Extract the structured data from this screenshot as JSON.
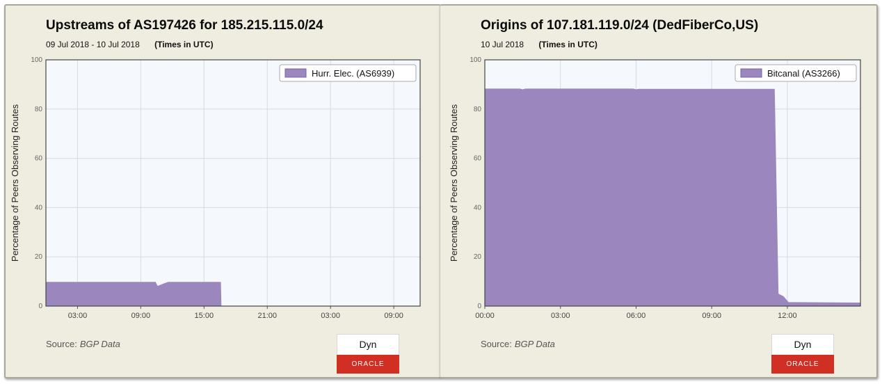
{
  "charts": [
    {
      "title": "Upstreams of AS197426 for 185.215.115.0/24",
      "date_range": "09 Jul 2018 - 10 Jul 2018",
      "time_note": "(Times in UTC)",
      "source_label": "Source:",
      "source_value": "BGP Data",
      "logo_top": "Dyn",
      "logo_bottom": "ORACLE"
    },
    {
      "title": "Origins of 107.181.119.0/24 (DedFiberCo,US)",
      "date_range": "10 Jul 2018",
      "time_note": "(Times in UTC)",
      "source_label": "Source:",
      "source_value": "BGP Data",
      "logo_top": "Dyn",
      "logo_bottom": "ORACLE"
    }
  ],
  "colors": {
    "series_fill": "#9b86bd",
    "series_border": "#7b63a6",
    "plot_bg": "#f5f8fc",
    "grid": "#d6dce6"
  },
  "chart_data": [
    {
      "type": "area",
      "title": "Upstreams of AS197426 for 185.215.115.0/24",
      "ylabel": "Percentage of Peers Observing Routes",
      "xlabel": "",
      "ylim": [
        0,
        100
      ],
      "yticks": [
        0,
        20,
        40,
        60,
        80,
        100
      ],
      "xlim": [
        0,
        35.5
      ],
      "xticks": [
        {
          "x": 3,
          "label": "03:00"
        },
        {
          "x": 9,
          "label": "09:00"
        },
        {
          "x": 15,
          "label": "15:00"
        },
        {
          "x": 21,
          "label": "21:00"
        },
        {
          "x": 27,
          "label": "03:00"
        },
        {
          "x": 33,
          "label": "09:00"
        }
      ],
      "grid": true,
      "legend_position": "top-right",
      "series": [
        {
          "name": "Hurr. Elec. (AS6939)",
          "x": [
            0,
            10.4,
            10.6,
            11.2,
            11.6,
            16.6,
            16.65,
            35.5
          ],
          "y": [
            9.8,
            9.8,
            8.2,
            9.2,
            9.8,
            9.8,
            0,
            0
          ]
        }
      ]
    },
    {
      "type": "area",
      "title": "Origins of 107.181.119.0/24 (DedFiberCo,US)",
      "ylabel": "Percentage of Peers Observing Routes",
      "xlabel": "",
      "ylim": [
        0,
        100
      ],
      "yticks": [
        0,
        20,
        40,
        60,
        80,
        100
      ],
      "xlim": [
        0,
        14.9
      ],
      "xticks": [
        {
          "x": 0,
          "label": "00:00"
        },
        {
          "x": 3,
          "label": "03:00"
        },
        {
          "x": 6,
          "label": "06:00"
        },
        {
          "x": 9,
          "label": "09:00"
        },
        {
          "x": 12,
          "label": "12:00"
        }
      ],
      "grid": true,
      "legend_position": "top-right",
      "series": [
        {
          "name": "Bitcanal (AS3266)",
          "x": [
            0,
            1.4,
            1.5,
            1.6,
            5.9,
            6.0,
            6.1,
            11.5,
            11.55,
            11.65,
            11.85,
            12.05,
            14.9
          ],
          "y": [
            88.3,
            88.3,
            88.0,
            88.3,
            88.3,
            88.0,
            88.2,
            88.2,
            60,
            5,
            4,
            1.6,
            1.4
          ]
        }
      ]
    }
  ]
}
